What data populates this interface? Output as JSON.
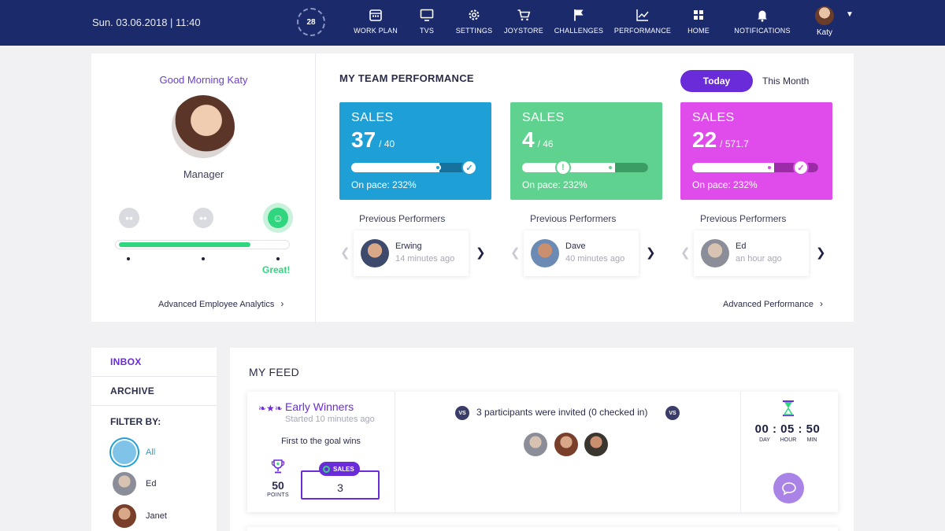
{
  "header": {
    "datetime": "Sun. 03.06.2018 | 11:40",
    "day_badge": "28",
    "nav": [
      {
        "label": "WORK PLAN",
        "icon": "calendar-icon"
      },
      {
        "label": "TVS",
        "icon": "monitor-icon"
      },
      {
        "label": "SETTINGS",
        "icon": "gear-icon"
      },
      {
        "label": "JOYSTORE",
        "icon": "cart-icon"
      },
      {
        "label": "CHALLENGES",
        "icon": "flag-icon"
      },
      {
        "label": "PERFORMANCE",
        "icon": "chart-line-icon"
      },
      {
        "label": "HOME",
        "icon": "grid-icon"
      },
      {
        "label": "NOTIFICATIONS",
        "icon": "bell-icon"
      }
    ],
    "user": {
      "name": "Katy",
      "icon": "chevron-down-icon"
    }
  },
  "profile": {
    "greeting": "Good Morning Katy",
    "role": "Manager",
    "mood": {
      "selected": "happy",
      "level": 0.79,
      "label": "Great!"
    },
    "link": "Advanced Employee Analytics"
  },
  "team": {
    "title": "MY TEAM PERFORMANCE",
    "toggle": {
      "active": "Today",
      "inactive": "This Month"
    },
    "kpis": [
      {
        "label": "SALES",
        "value": "37",
        "target": "/ 40",
        "pace": "On pace: 232%",
        "color": "#1e9fd6",
        "progress": 0.69,
        "status": "check"
      },
      {
        "label": "SALES",
        "value": "4",
        "target": "/ 46",
        "pace": "On pace: 232%",
        "color": "#5ed28e",
        "progress": 0.69,
        "status": "warning"
      },
      {
        "label": "SALES",
        "value": "22",
        "target": "/ 571.7",
        "pace": "On pace: 232%",
        "color": "#e04cec",
        "progress": 0.62,
        "status": "check"
      }
    ],
    "prev_label": "Previous Performers",
    "performers": [
      {
        "name": "Erwing",
        "time": "14 minutes ago"
      },
      {
        "name": "Dave",
        "time": "40 minutes ago"
      },
      {
        "name": "Ed",
        "time": "an hour ago"
      }
    ],
    "link": "Advanced Performance"
  },
  "side": {
    "inbox": "INBOX",
    "archive": "ARCHIVE",
    "filter_label": "FILTER BY:",
    "filters": [
      {
        "name": "All",
        "active": true
      },
      {
        "name": "Ed",
        "active": false
      },
      {
        "name": "Janet",
        "active": false
      }
    ]
  },
  "feed": {
    "title": "MY FEED",
    "challenge": {
      "title": "Early Winners",
      "started": "Started 10 minutes ago",
      "rule": "First to the goal wins",
      "points": "50",
      "points_label": "POINTS",
      "kpi_label": "SALES",
      "kpi_value": "3",
      "vs": "VS",
      "invited": "3 participants were invited (0 checked in)",
      "countdown": "00 : 05 : 50",
      "units": [
        "DAY",
        "HOUR",
        "MIN"
      ]
    }
  },
  "colors": {
    "nav_bg": "#1b2a6b",
    "accent": "#6a2bd9",
    "green": "#2fd67e"
  }
}
